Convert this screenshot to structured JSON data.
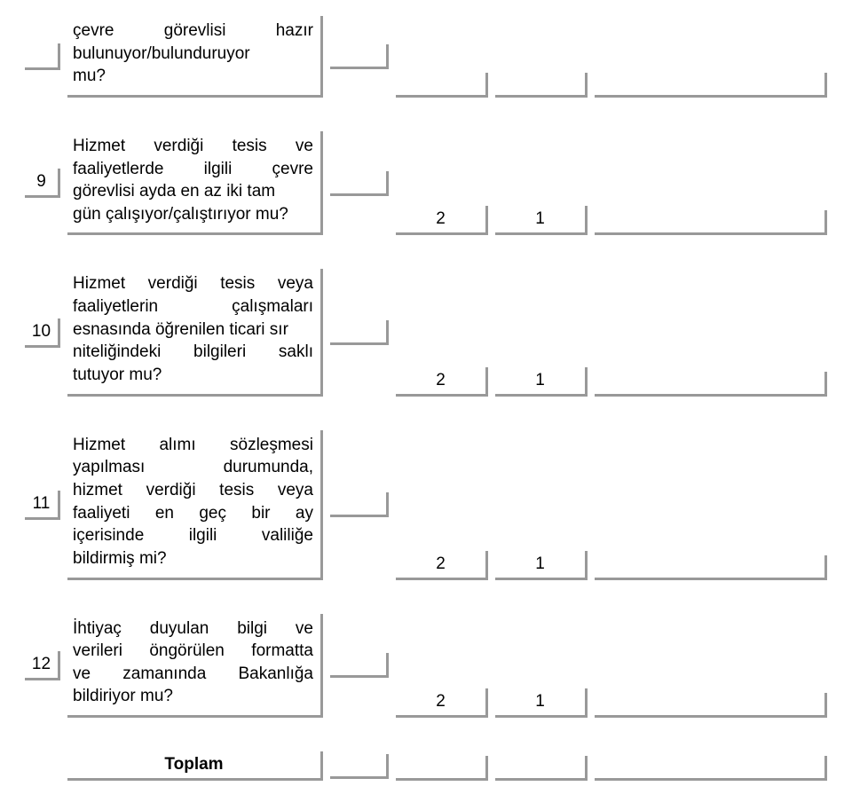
{
  "rows": [
    {
      "num": "",
      "text_lines": [
        [
          "çevre",
          "görevlisi",
          "hazır"
        ],
        [
          "bulunuyor/bulunduruyor"
        ],
        [
          "mu?"
        ]
      ],
      "col3": "",
      "col4": "",
      "col5": "",
      "col6": ""
    },
    {
      "num": "9",
      "text_lines": [
        [
          "Hizmet",
          "verdiği",
          "tesis",
          "ve"
        ],
        [
          "faaliyetlerde",
          "ilgili",
          "çevre"
        ],
        [
          "görevlisi ayda en az iki tam"
        ],
        [
          "gün çalışıyor/çalıştırıyor mu?"
        ]
      ],
      "col3": "",
      "col4": "2",
      "col5": "1",
      "col6": ""
    },
    {
      "num": "10",
      "text_lines": [
        [
          "Hizmet",
          "verdiği",
          "tesis",
          "veya"
        ],
        [
          "faaliyetlerin",
          "çalışmaları"
        ],
        [
          "esnasında öğrenilen ticari sır"
        ],
        [
          "niteliğindeki",
          "bilgileri",
          "saklı"
        ],
        [
          "tutuyor mu?"
        ]
      ],
      "col3": "",
      "col4": "2",
      "col5": "1",
      "col6": ""
    },
    {
      "num": "11",
      "text_lines": [
        [
          "Hizmet",
          "alımı",
          "sözleşmesi"
        ],
        [
          "yapılması",
          "durumunda,"
        ],
        [
          "hizmet",
          "verdiği",
          "tesis",
          "veya"
        ],
        [
          "faaliyeti",
          "en",
          "geç",
          "bir",
          "ay"
        ],
        [
          "içerisinde",
          "ilgili",
          "valiliğe"
        ],
        [
          "bildirmiş mi?"
        ]
      ],
      "col3": "",
      "col4": "2",
      "col5": "1",
      "col6": ""
    },
    {
      "num": "12",
      "text_lines": [
        [
          "İhtiyaç",
          "duyulan",
          "bilgi",
          "ve"
        ],
        [
          "verileri",
          "öngörülen",
          "formatta"
        ],
        [
          "ve",
          "zamanında",
          "Bakanlığa"
        ],
        [
          "bildiriyor mu?"
        ]
      ],
      "col3": "",
      "col4": "2",
      "col5": "1",
      "col6": ""
    }
  ],
  "toplam": {
    "label": "Toplam",
    "col3": "",
    "col4": "",
    "col5": "",
    "col6": ""
  },
  "colors": {
    "border": "#999999",
    "text": "#000000",
    "background": "#ffffff"
  },
  "fontsize_pt": 14
}
